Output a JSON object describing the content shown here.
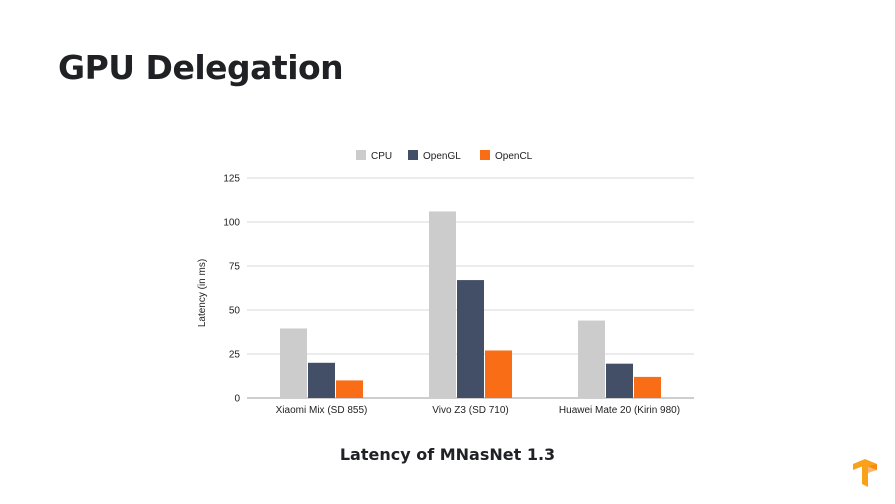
{
  "slide": {
    "title": "GPU Delegation",
    "caption": "Latency of MNasNet 1.3"
  },
  "colors": {
    "cpu": "#cccccc",
    "opengl": "#434f66",
    "opencl": "#fa6d17",
    "gridline": "#d9d9d9",
    "logo": "#f9a11b"
  },
  "logo_icon": "tensorflow-logo-icon",
  "chart_data": {
    "type": "bar",
    "title": "",
    "xlabel": "",
    "ylabel": "Latency (in ms)",
    "ylim": [
      0,
      125
    ],
    "yticks": [
      0,
      25,
      50,
      75,
      100,
      125
    ],
    "grid": true,
    "legend_position": "top",
    "categories": [
      "Xiaomi Mix (SD 855)",
      "Vivo Z3 (SD 710)",
      "Huawei Mate 20 (Kirin 980)"
    ],
    "series": [
      {
        "name": "CPU",
        "color": "#cccccc",
        "values": [
          39.5,
          106,
          44
        ]
      },
      {
        "name": "OpenGL",
        "color": "#434f66",
        "values": [
          20,
          67,
          19.5
        ]
      },
      {
        "name": "OpenCL",
        "color": "#fa6d17",
        "values": [
          10,
          27,
          12
        ]
      }
    ]
  }
}
